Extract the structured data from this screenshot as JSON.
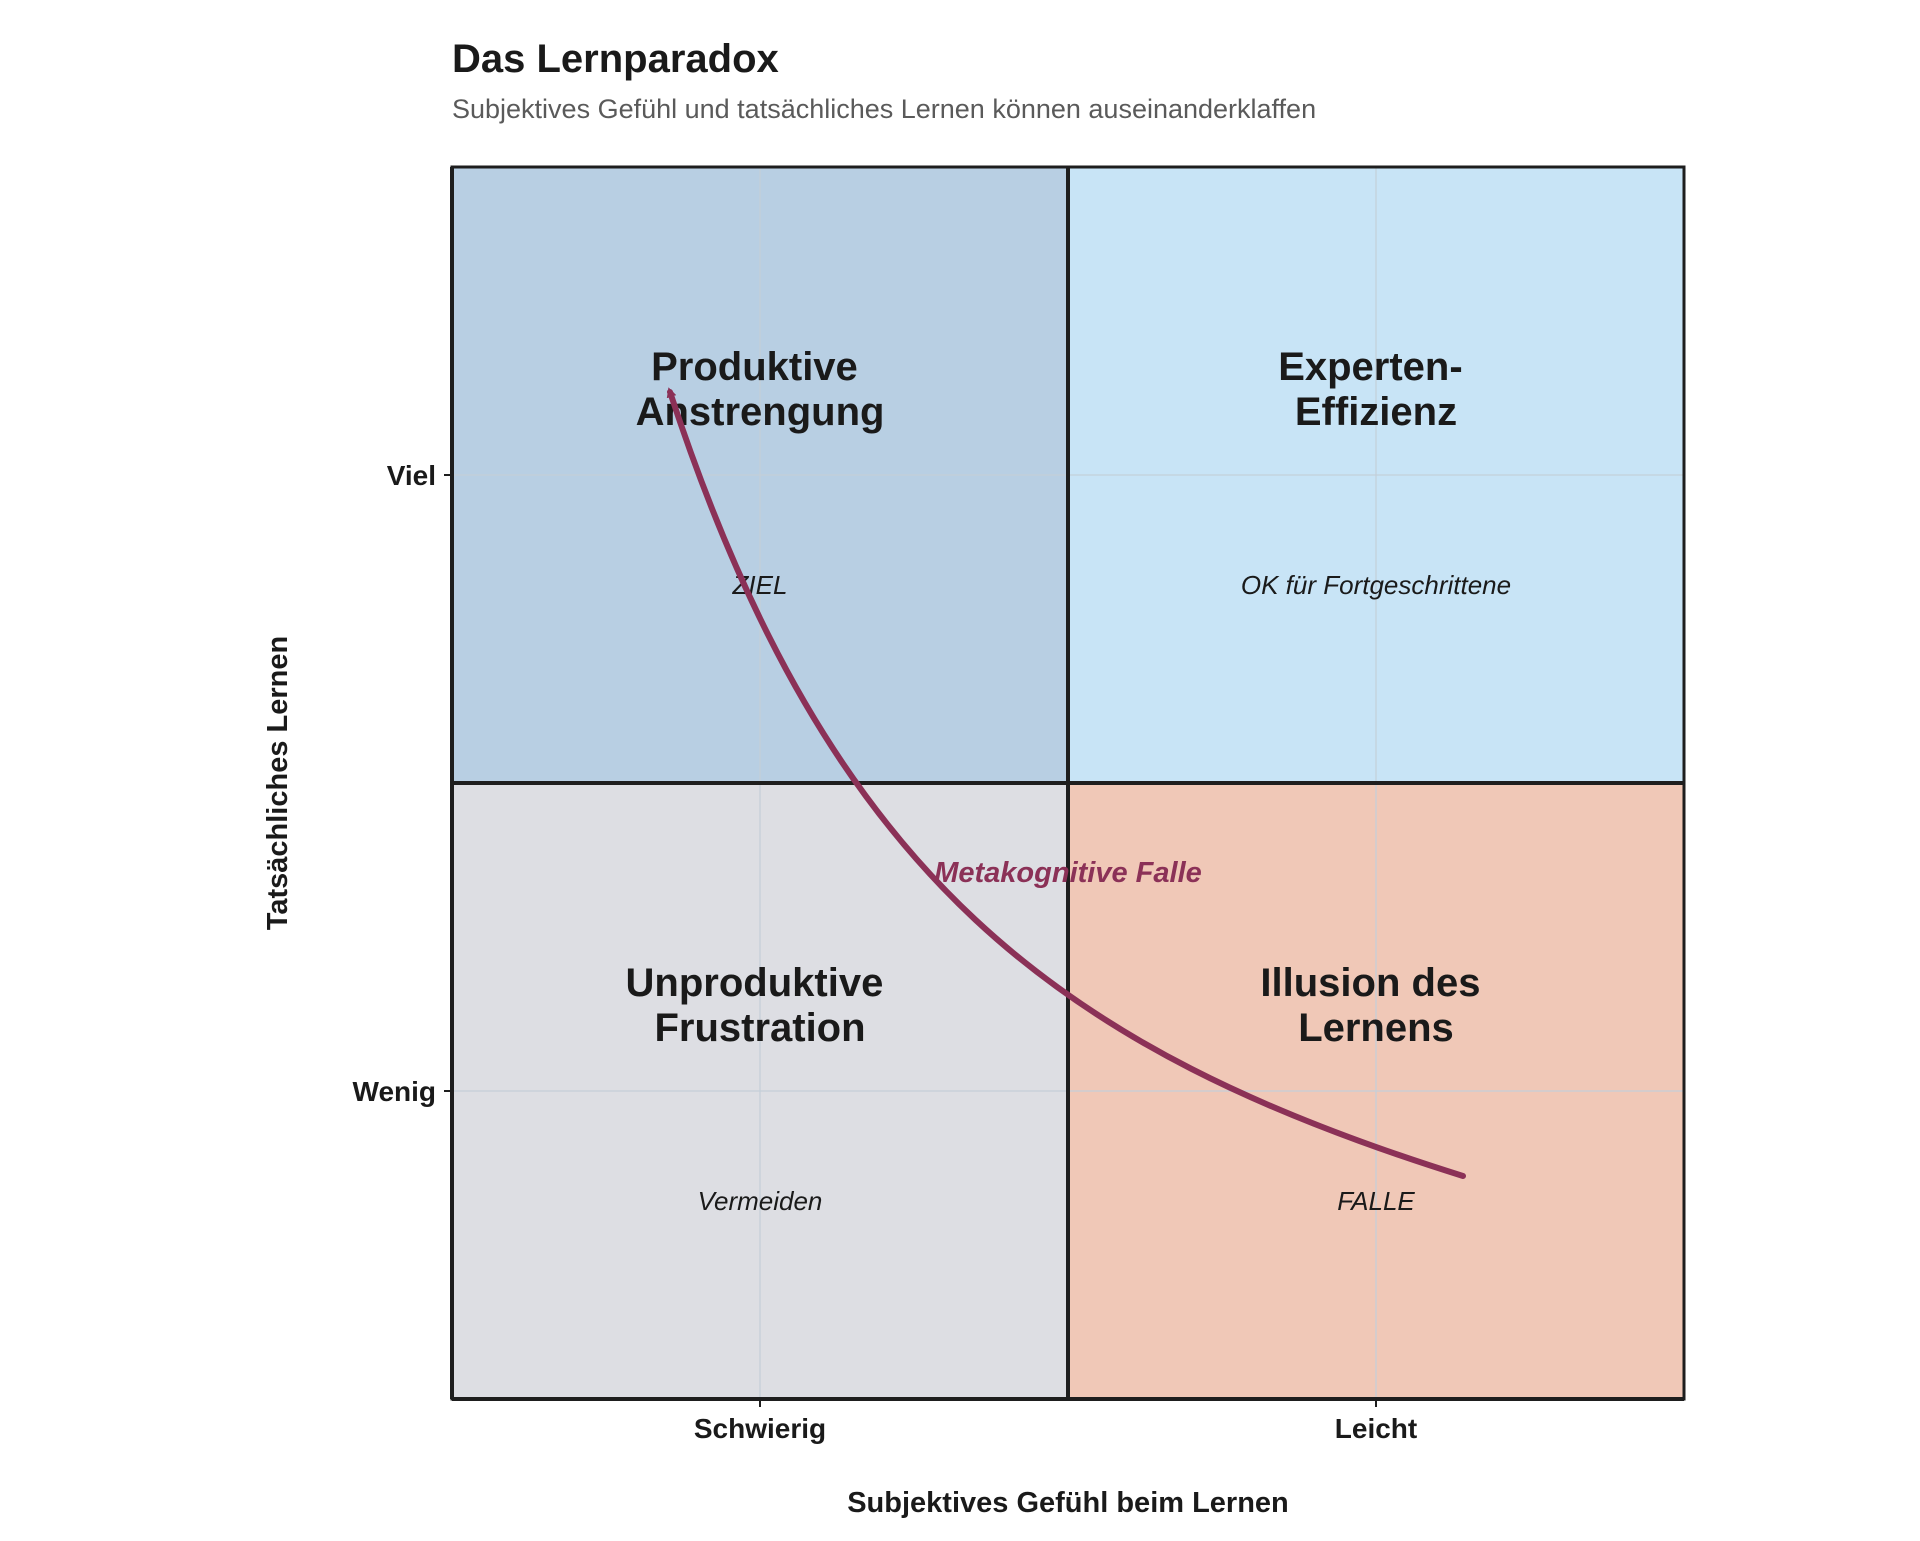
{
  "title": "Das Lernparadox",
  "subtitle": "Subjektives Gefühl und tatsächliches Lernen können auseinanderklaffen",
  "x_axis": {
    "label": "Subjektives Gefühl beim Lernen",
    "ticks": [
      "Schwierig",
      "Leicht"
    ]
  },
  "y_axis": {
    "label": "Tatsächliches Lernen",
    "ticks": [
      "Viel",
      "Wenig"
    ]
  },
  "quadrants": [
    {
      "id": "top-left",
      "title_lines": [
        "Produktive",
        "Anstrengung"
      ],
      "note": "ZIEL",
      "color": "#b8cfe3"
    },
    {
      "id": "top-right",
      "title_lines": [
        "Experten-",
        "Effizienz"
      ],
      "note": "OK für Fortgeschrittene",
      "color": "#c8e4f6"
    },
    {
      "id": "bottom-left",
      "title_lines": [
        "Unproduktive",
        "Frustration"
      ],
      "note": "Vermeiden",
      "color": "#dddee3"
    },
    {
      "id": "bottom-right",
      "title_lines": [
        "Illusion des",
        "Lernens"
      ],
      "note": "FALLE",
      "color": "#f0c8b7"
    }
  ],
  "arrow": {
    "label": "Metakognitive Falle",
    "color": "#8b3157",
    "from_quadrant": "bottom-right",
    "to_quadrant": "top-left"
  },
  "colors": {
    "grid_line": "#c4cfd9",
    "border": "#1e1e1e",
    "title": "#1a1a1a",
    "subtitle": "#5a5a5a",
    "text": "#1a1a1a"
  }
}
